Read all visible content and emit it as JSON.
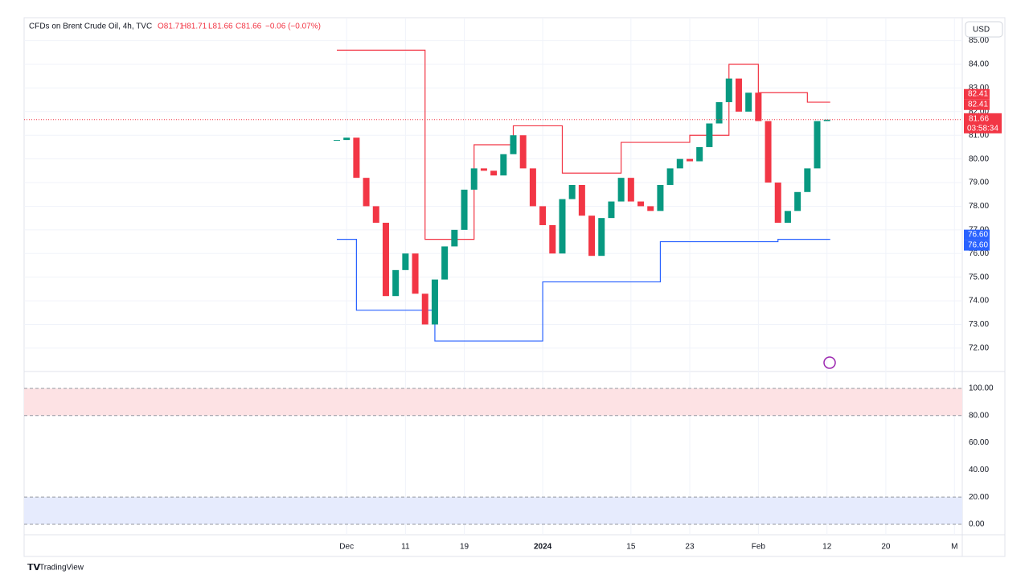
{
  "header": {
    "symbol": "CFDs on Brent Crude Oil, 4h, TVC",
    "open": "O81.71",
    "high": "H81.71",
    "low": "L81.66",
    "close": "C81.66",
    "change": "−0.06 (−0.07%)",
    "currency": "USD"
  },
  "footer": {
    "brand": "TradingView"
  },
  "chart_data": {
    "type": "candlestick",
    "x": [
      -1,
      0,
      1,
      2,
      3,
      4,
      5,
      6,
      7,
      8,
      9,
      10,
      11,
      12,
      13,
      14,
      15,
      16,
      17,
      18,
      19,
      20,
      21,
      22,
      23,
      24,
      25,
      26,
      27,
      28,
      29,
      30,
      31,
      32,
      33,
      34,
      35,
      36,
      37,
      38,
      39,
      40,
      41,
      42,
      43,
      44,
      45,
      46,
      47,
      48,
      49
    ],
    "series": [
      {
        "name": "close",
        "up_color": "#089981",
        "down_color": "#f23645",
        "values": [
          80.8,
          80.9,
          79.2,
          78.0,
          77.3,
          74.2,
          75.3,
          76.0,
          74.3,
          73.0,
          74.9,
          76.3,
          77.0,
          78.7,
          79.6,
          79.5,
          79.3,
          80.2,
          81.0,
          79.6,
          78.0,
          77.2,
          76.0,
          78.3,
          78.9,
          77.6,
          75.9,
          77.5,
          78.2,
          79.2,
          78.2,
          78.0,
          77.8,
          78.9,
          79.6,
          80.0,
          79.9,
          80.5,
          81.5,
          82.4,
          83.4,
          82.0,
          82.8,
          81.6,
          79.0,
          77.3,
          77.8,
          78.6,
          79.6,
          81.6,
          81.66
        ]
      },
      {
        "name": "upper",
        "color": "#f23645",
        "values": [
          84.6,
          84.6,
          84.6,
          84.6,
          84.6,
          84.6,
          84.6,
          84.6,
          84.6,
          76.6,
          76.6,
          76.6,
          76.6,
          76.6,
          80.6,
          80.6,
          80.6,
          80.6,
          81.4,
          81.4,
          81.4,
          81.4,
          81.4,
          79.4,
          79.4,
          79.4,
          79.4,
          79.4,
          79.4,
          80.7,
          80.7,
          80.7,
          80.7,
          80.7,
          80.7,
          80.7,
          81.0,
          81.0,
          81.0,
          81.0,
          84.0,
          84.0,
          84.0,
          82.8,
          82.8,
          82.8,
          82.8,
          82.8,
          82.4,
          82.4,
          82.4
        ]
      },
      {
        "name": "lower",
        "color": "#2962ff",
        "values": [
          76.6,
          76.6,
          73.6,
          73.6,
          73.6,
          73.6,
          73.6,
          73.6,
          73.6,
          73.6,
          72.3,
          72.3,
          72.3,
          72.3,
          72.3,
          72.3,
          72.3,
          72.3,
          72.3,
          72.3,
          72.3,
          74.8,
          74.8,
          74.8,
          74.8,
          74.8,
          74.8,
          74.8,
          74.8,
          74.8,
          74.8,
          74.8,
          74.8,
          76.5,
          76.5,
          76.5,
          76.5,
          76.5,
          76.5,
          76.5,
          76.5,
          76.5,
          76.5,
          76.5,
          76.5,
          76.6,
          76.6,
          76.6,
          76.6,
          76.6,
          76.6
        ]
      }
    ],
    "xlim": [
      -32.9,
      62.8
    ],
    "xticks": [
      {
        "value": 0,
        "label": "Dec"
      },
      {
        "value": 6,
        "label": "11"
      },
      {
        "value": 12,
        "label": "19"
      },
      {
        "value": 20,
        "label": "2024"
      },
      {
        "value": 29,
        "label": "15"
      },
      {
        "value": 35,
        "label": "23"
      },
      {
        "value": 42,
        "label": "Feb"
      },
      {
        "value": 49,
        "label": "12"
      },
      {
        "value": 55,
        "label": "20"
      },
      {
        "value": 62,
        "label": "M"
      }
    ],
    "ylim": [
      71.01,
      85.19
    ],
    "yticks": [
      {
        "value": 72,
        "label": "72.00"
      },
      {
        "value": 73,
        "label": "73.00"
      },
      {
        "value": 74,
        "label": "74.00"
      },
      {
        "value": 75,
        "label": "75.00"
      },
      {
        "value": 76,
        "label": "76.00"
      },
      {
        "value": 77,
        "label": "77.00"
      },
      {
        "value": 78,
        "label": "78.00"
      },
      {
        "value": 79,
        "label": "79.00"
      },
      {
        "value": 80,
        "label": "80.00"
      },
      {
        "value": 81,
        "label": "81.00"
      },
      {
        "value": 82,
        "label": "82.00"
      },
      {
        "value": 83,
        "label": "83.00"
      },
      {
        "value": 84,
        "label": "84.00"
      },
      {
        "value": 85,
        "label": "85.00"
      }
    ],
    "grid": true,
    "price_labels": [
      {
        "value": 82.41,
        "color": "#f23645"
      },
      {
        "value": 82.41,
        "color": "#f23645"
      },
      {
        "value": 76.6,
        "label": "76.60",
        "color": "#2962ff"
      },
      {
        "value": 76.6,
        "label": "76.60",
        "color": "#2962ff"
      }
    ],
    "last_price": {
      "value": 81.66,
      "countdown": "03:58:34",
      "color": "#f23645"
    },
    "oscillator": {
      "ylim": [
        -7.7,
        112.4
      ],
      "yticks": [
        {
          "value": 0,
          "label": "0.00"
        },
        {
          "value": 20,
          "label": "20.00"
        },
        {
          "value": 40,
          "label": "40.00"
        },
        {
          "value": 60,
          "label": "60.00"
        },
        {
          "value": 80,
          "label": "80.00"
        },
        {
          "value": 100,
          "label": "100.00"
        }
      ],
      "bands": [
        {
          "from": 80,
          "to": 100,
          "color": "#fde2e4"
        },
        {
          "from": 0,
          "to": 20,
          "color": "#e6ebfd"
        }
      ]
    }
  }
}
